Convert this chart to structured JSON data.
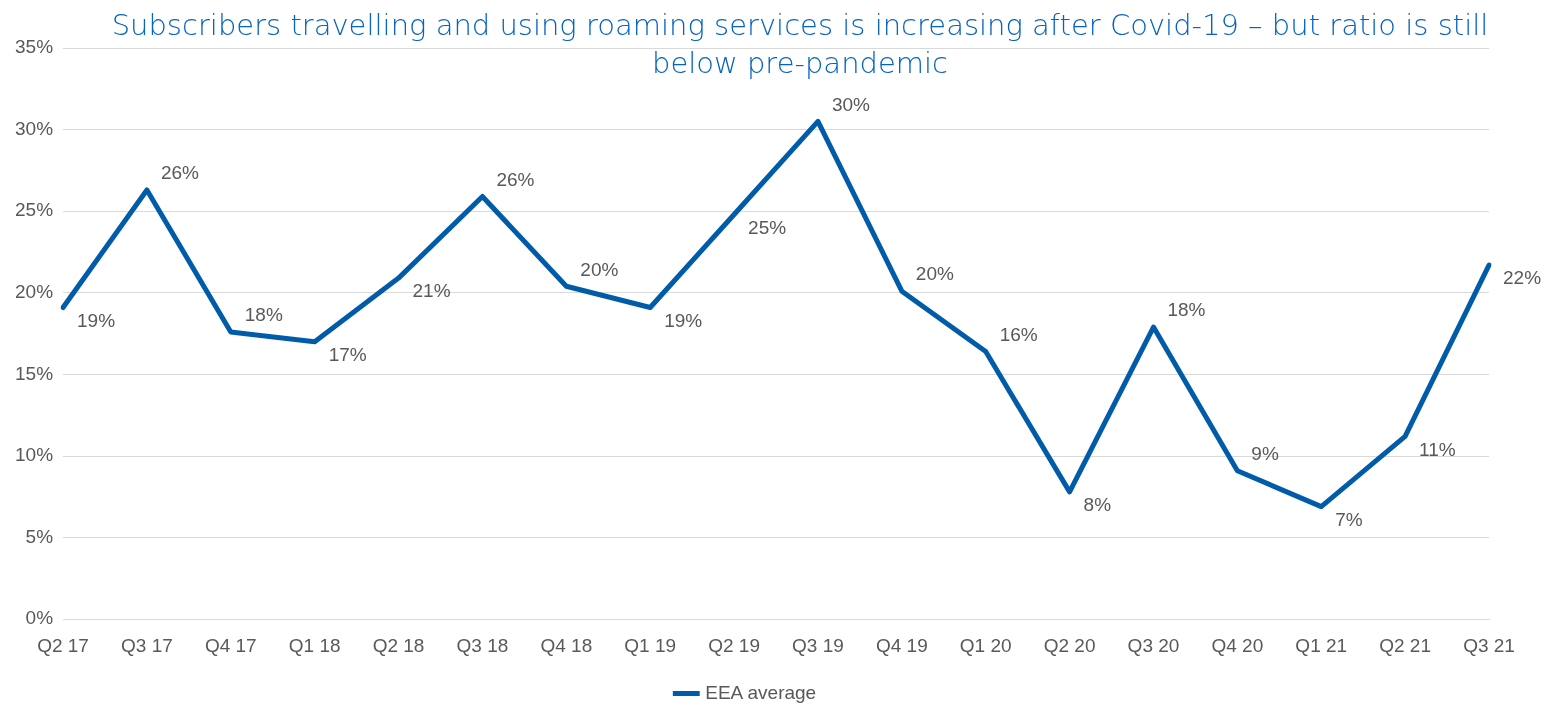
{
  "chart_data": {
    "type": "line",
    "title": "Subscribers travelling and using roaming services is increasing after Covid-19 – but ratio is still below pre-pandemic",
    "categories": [
      "Q2 17",
      "Q3 17",
      "Q4 17",
      "Q1 18",
      "Q2 18",
      "Q3 18",
      "Q4 18",
      "Q1 19",
      "Q2 19",
      "Q3 19",
      "Q4 19",
      "Q1 20",
      "Q2 20",
      "Q3 20",
      "Q4 20",
      "Q1 21",
      "Q2 21",
      "Q3 21"
    ],
    "series": [
      {
        "name": "EEA average",
        "color": "#005ba8",
        "values": [
          19.1,
          26.3,
          17.6,
          17.0,
          20.9,
          25.9,
          20.4,
          19.1,
          24.8,
          30.5,
          20.1,
          16.4,
          7.8,
          17.9,
          9.1,
          6.9,
          11.2,
          21.7
        ],
        "value_labels": [
          "19%",
          "26%",
          "18%",
          "17%",
          "21%",
          "26%",
          "20%",
          "19%",
          "25%",
          "30%",
          "20%",
          "16%",
          "8%",
          "18%",
          "9%",
          "7%",
          "11%",
          "22%"
        ]
      }
    ],
    "ylim": [
      0,
      35
    ],
    "yticks": [
      {
        "value": 0,
        "label": "0%"
      },
      {
        "value": 5,
        "label": "5%"
      },
      {
        "value": 10,
        "label": "10%"
      },
      {
        "value": 15,
        "label": "15%"
      },
      {
        "value": 20,
        "label": "20%"
      },
      {
        "value": 25,
        "label": "25%"
      },
      {
        "value": 30,
        "label": "30%"
      },
      {
        "value": 35,
        "label": "35%"
      }
    ],
    "grid": "y",
    "legend": "bottom",
    "marker": "none",
    "line_style": "solid"
  }
}
